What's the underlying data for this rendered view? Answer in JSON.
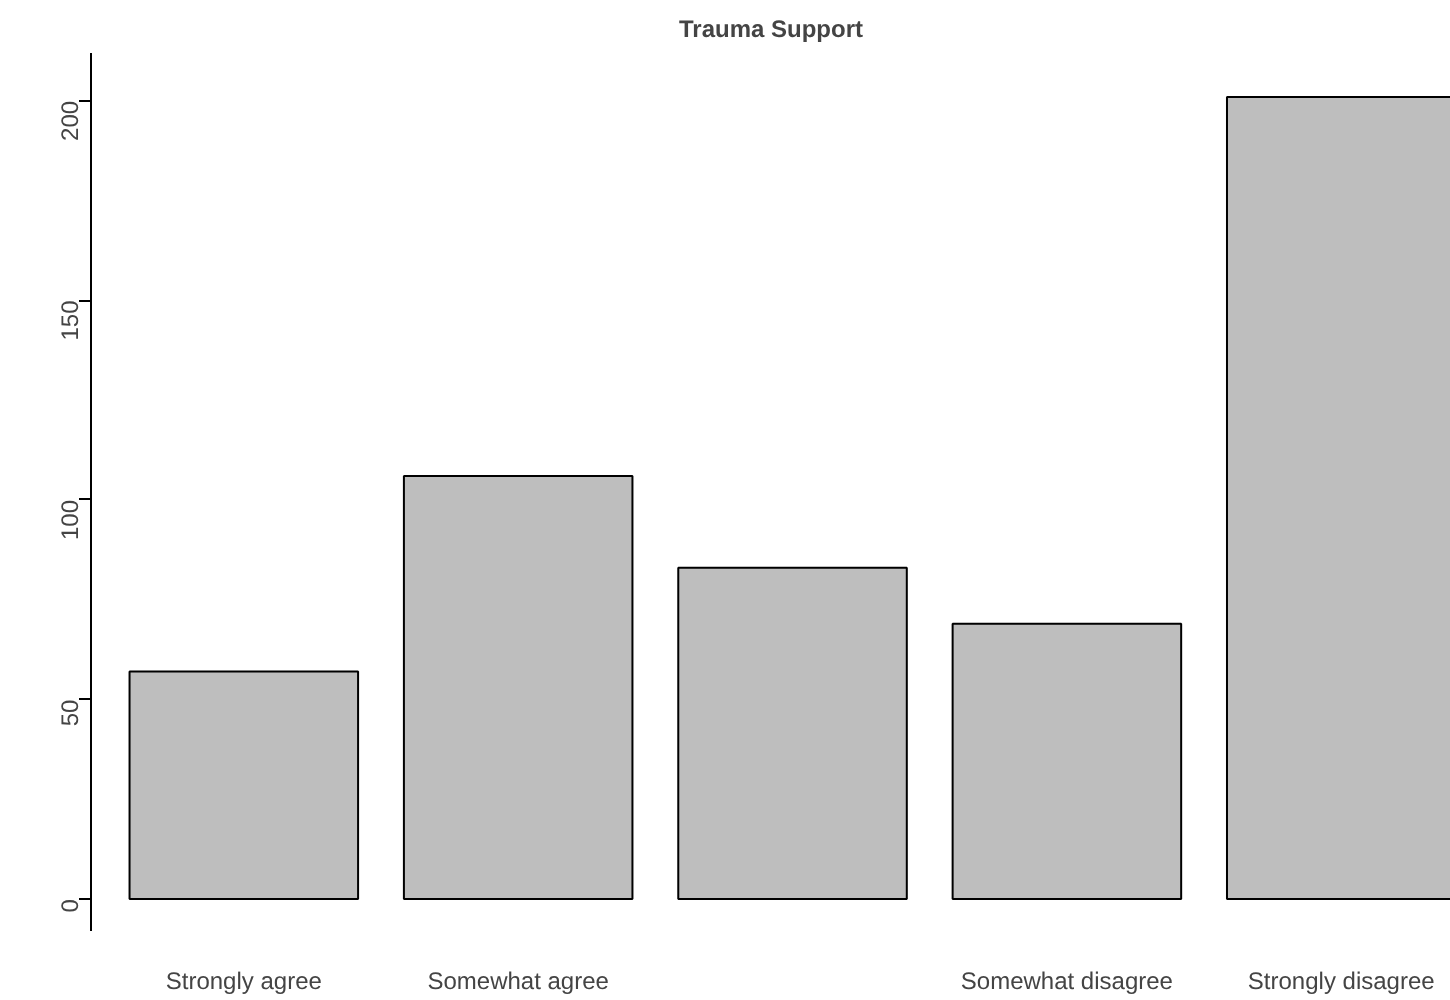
{
  "chart_data": {
    "type": "bar",
    "title": "Trauma Support",
    "categories": [
      "Strongly agree",
      "Somewhat agree",
      null,
      "Somewhat disagree",
      "Strongly disagree"
    ],
    "values": [
      57,
      106,
      83,
      69,
      201
    ],
    "color": "#bebebe",
    "ylim": [
      -8,
      212
    ],
    "yticks": [
      0,
      50,
      100,
      150,
      200
    ],
    "grid": false
  }
}
